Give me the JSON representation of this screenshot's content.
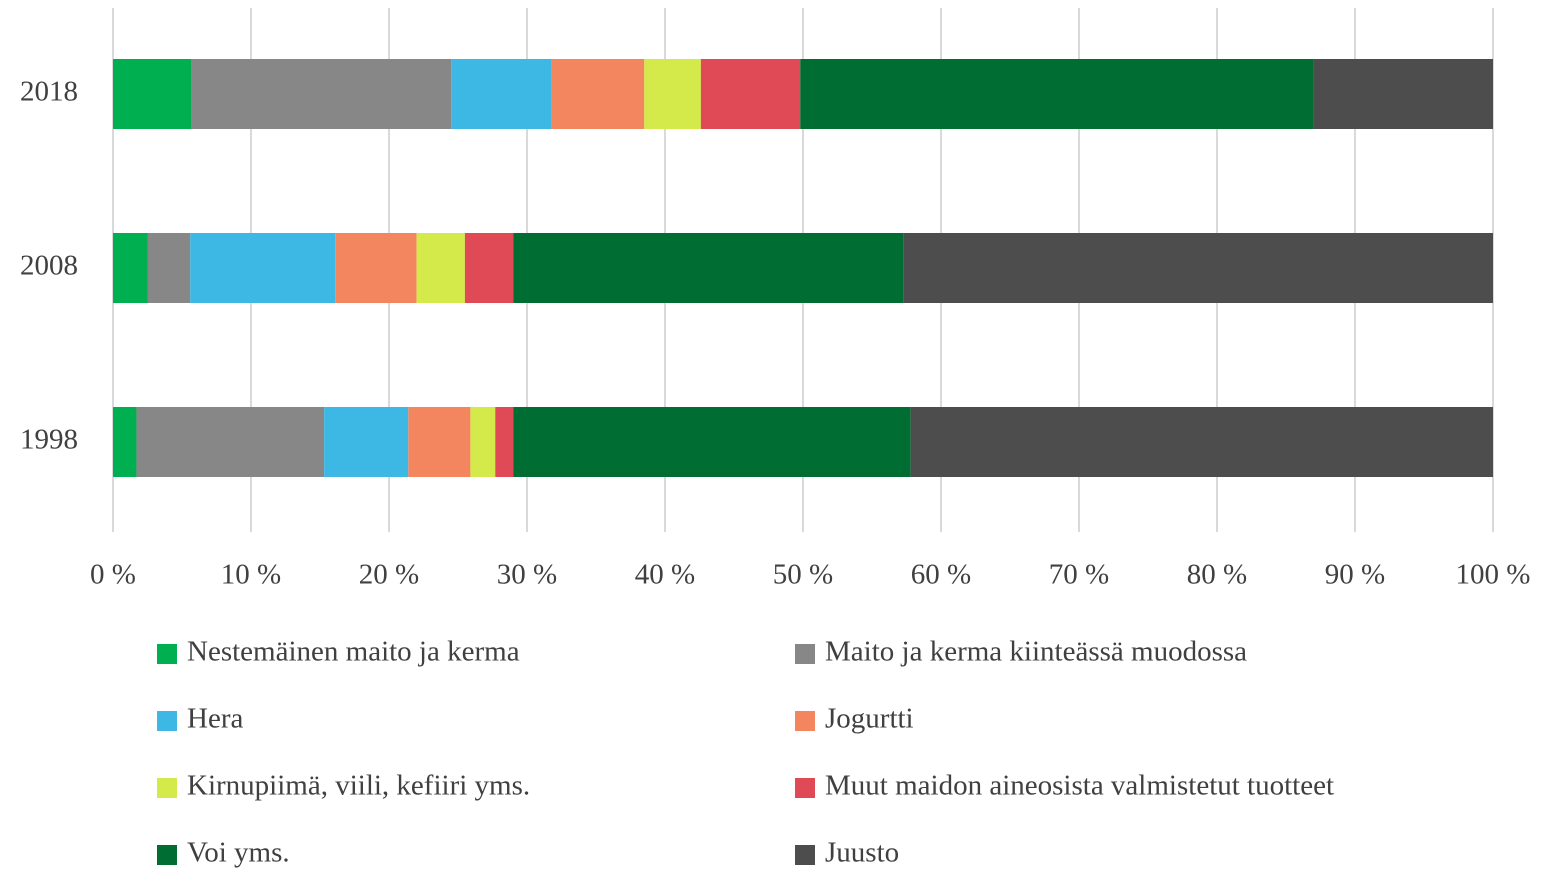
{
  "chart_data": {
    "type": "stacked-bar-horizontal",
    "categories": [
      "2018",
      "2008",
      "1998"
    ],
    "series": [
      {
        "name": "Nestemäinen maito ja kerma",
        "color": "#00b050",
        "values": [
          5.7,
          2.5,
          1.7
        ]
      },
      {
        "name": "Maito ja kerma kiinteässä muodossa",
        "color": "#878787",
        "values": [
          18.8,
          3.1,
          13.6
        ]
      },
      {
        "name": "Hera",
        "color": "#3db8e5",
        "values": [
          7.3,
          10.5,
          6.1
        ]
      },
      {
        "name": "Jogurtti",
        "color": "#f4865f",
        "values": [
          6.7,
          5.9,
          4.5
        ]
      },
      {
        "name": "Kirnupiimä, viili, kefiiri yms.",
        "color": "#d4e94a",
        "values": [
          4.1,
          3.5,
          1.8
        ]
      },
      {
        "name": "Muut maidon aineosista valmistetut tuotteet",
        "color": "#e04a57",
        "values": [
          7.2,
          3.5,
          1.3
        ]
      },
      {
        "name": "Voi yms.",
        "color": "#006d32",
        "values": [
          37.2,
          28.3,
          28.8
        ]
      },
      {
        "name": "Juusto",
        "color": "#4d4d4d",
        "values": [
          13.0,
          42.7,
          42.2
        ]
      }
    ],
    "xlim": [
      0,
      100
    ],
    "xticks": [
      {
        "value": 0,
        "label": "0 %"
      },
      {
        "value": 10,
        "label": "10 %"
      },
      {
        "value": 20,
        "label": "20 %"
      },
      {
        "value": 30,
        "label": "30 %"
      },
      {
        "value": 40,
        "label": "40 %"
      },
      {
        "value": 50,
        "label": "50 %"
      },
      {
        "value": 60,
        "label": "60 %"
      },
      {
        "value": 70,
        "label": "70 %"
      },
      {
        "value": 80,
        "label": "80 %"
      },
      {
        "value": 90,
        "label": "90 %"
      },
      {
        "value": 100,
        "label": "100 %"
      }
    ],
    "grid": true,
    "legend": "bottom"
  }
}
